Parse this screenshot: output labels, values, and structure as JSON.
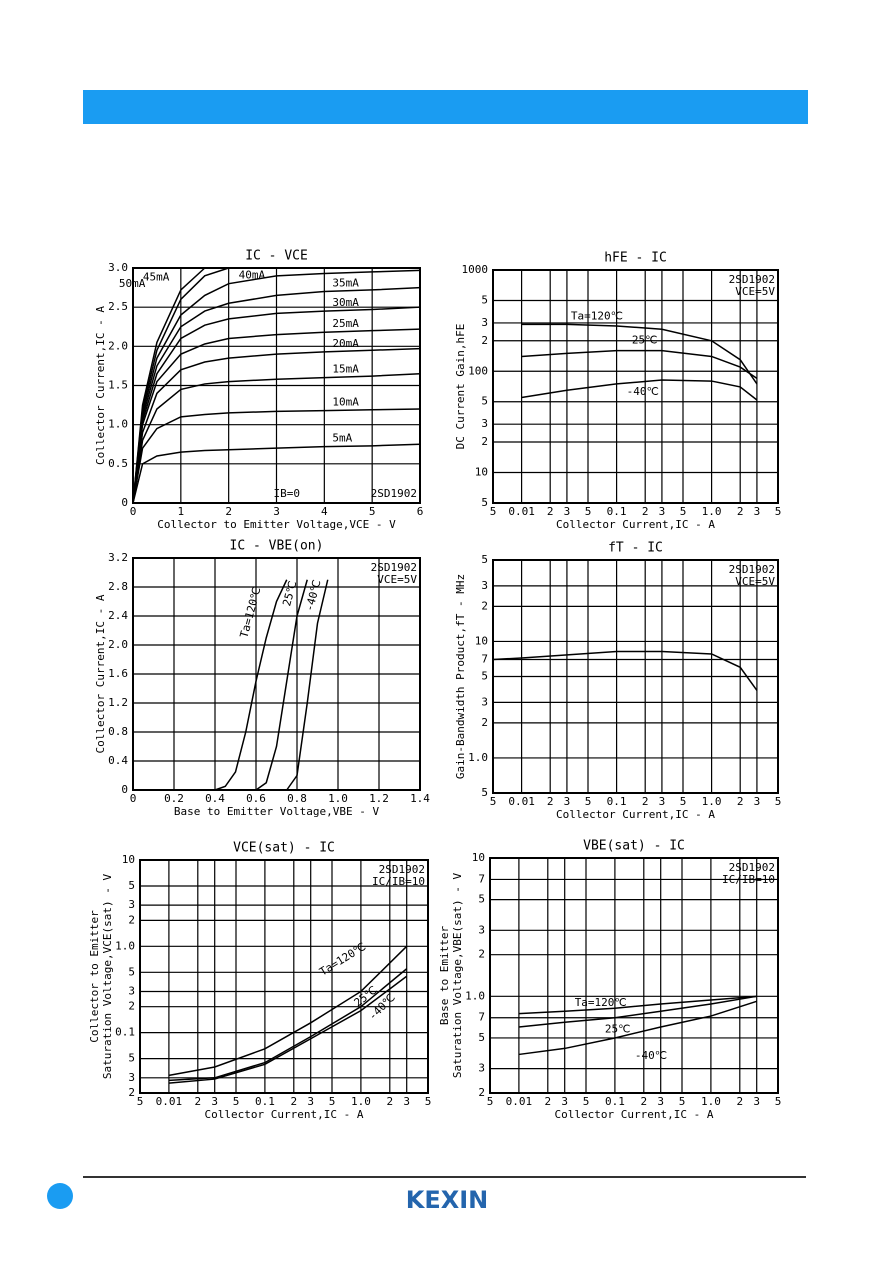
{
  "chart_data": [
    {
      "type": "line",
      "title": "IC - VCE",
      "xlabel": "Collector to Emitter Voltage,VCE - V",
      "ylabel": [
        "Collector Current,IC - A"
      ],
      "xlim": [
        0,
        6
      ],
      "ylim": [
        0,
        3
      ],
      "xticks": [
        0,
        1,
        2,
        3,
        4,
        5,
        6
      ],
      "yticks": [
        0,
        0.5,
        {
          "value": 1,
          "label": "1.0"
        },
        1.5,
        {
          "value": 2,
          "label": "2.0"
        },
        2.5,
        {
          "value": 3,
          "label": "3.0"
        }
      ],
      "xlog": false,
      "ylog": false,
      "grid": true,
      "annotations": [
        "IB=0",
        "2SD1902"
      ],
      "x": [
        0,
        0.2,
        0.5,
        1,
        1.5,
        2,
        3,
        4,
        5,
        6
      ],
      "series": [
        {
          "name": "5mA",
          "color": "#000000",
          "values": [
            0,
            0.5,
            0.6,
            0.65,
            0.67,
            0.68,
            0.7,
            0.72,
            0.73,
            0.75
          ]
        },
        {
          "name": "10mA",
          "color": "#000000",
          "values": [
            0,
            0.7,
            0.95,
            1.1,
            1.13,
            1.15,
            1.17,
            1.18,
            1.19,
            1.2
          ]
        },
        {
          "name": "15mA",
          "color": "#000000",
          "values": [
            0,
            0.8,
            1.2,
            1.45,
            1.52,
            1.55,
            1.58,
            1.6,
            1.62,
            1.65
          ]
        },
        {
          "name": "20mA",
          "color": "#000000",
          "values": [
            0,
            0.9,
            1.4,
            1.7,
            1.8,
            1.85,
            1.9,
            1.93,
            1.95,
            1.97
          ]
        },
        {
          "name": "25mA",
          "color": "#000000",
          "values": [
            0,
            1.0,
            1.55,
            1.9,
            2.03,
            2.1,
            2.15,
            2.18,
            2.2,
            2.22
          ]
        },
        {
          "name": "30mA",
          "color": "#000000",
          "values": [
            0,
            1.05,
            1.65,
            2.1,
            2.27,
            2.35,
            2.42,
            2.45,
            2.47,
            2.5
          ]
        },
        {
          "name": "35mA",
          "color": "#000000",
          "values": [
            0,
            1.1,
            1.75,
            2.25,
            2.45,
            2.55,
            2.65,
            2.7,
            2.72,
            2.75
          ]
        },
        {
          "name": "40mA",
          "color": "#000000",
          "values": [
            0,
            1.15,
            1.85,
            2.4,
            2.65,
            2.8,
            2.9,
            2.93,
            2.95,
            2.97
          ]
        },
        {
          "name": "45mA",
          "color": "#000000",
          "values": [
            0,
            1.2,
            1.95,
            2.6,
            2.9,
            3.0,
            null,
            null,
            null,
            null
          ]
        },
        {
          "name": "50mA",
          "color": "#000000",
          "values": [
            0,
            1.25,
            2.05,
            2.72,
            3.0,
            null,
            null,
            null,
            null,
            null
          ]
        }
      ]
    },
    {
      "type": "line",
      "title": "hFE - IC",
      "xlabel": "Collector Current,IC - A",
      "ylabel": [
        "DC Current Gain,hFE"
      ],
      "xlim": [
        0.005,
        5
      ],
      "ylim": [
        5,
        1000
      ],
      "xticks": [
        {
          "value": 0.005,
          "label": "5"
        },
        0.01,
        {
          "value": 0.02,
          "label": "2"
        },
        {
          "value": 0.03,
          "label": "3"
        },
        {
          "value": 0.05,
          "label": "5"
        },
        0.1,
        {
          "value": 0.2,
          "label": "2"
        },
        {
          "value": 0.3,
          "label": "3"
        },
        {
          "value": 0.5,
          "label": "5"
        },
        {
          "value": 1,
          "label": "1.0"
        },
        2,
        3,
        5
      ],
      "yticks": [
        5,
        10,
        {
          "value": 20,
          "label": "2"
        },
        {
          "value": 30,
          "label": "3"
        },
        {
          "value": 50,
          "label": "5"
        },
        100,
        {
          "value": 200,
          "label": "2"
        },
        {
          "value": 300,
          "label": "3"
        },
        {
          "value": 500,
          "label": "5"
        },
        1000
      ],
      "xlog": true,
      "ylog": true,
      "grid": true,
      "annotations": [
        "2SD1902",
        "VCE=5V"
      ],
      "x": [
        0.01,
        0.03,
        0.1,
        0.3,
        1,
        2,
        3
      ],
      "series": [
        {
          "name": "Ta=120℃",
          "color": "#000000",
          "values": [
            290,
            290,
            280,
            260,
            200,
            130,
            75
          ]
        },
        {
          "name": "25℃",
          "color": "#000000",
          "values": [
            140,
            150,
            160,
            160,
            140,
            110,
            85
          ]
        },
        {
          "name": "-40℃",
          "color": "#000000",
          "values": [
            55,
            65,
            75,
            82,
            80,
            70,
            52
          ]
        }
      ]
    },
    {
      "type": "line",
      "title": "IC - VBE(on)",
      "xlabel": "Base to Emitter Voltage,VBE - V",
      "ylabel": [
        "Collector Current,IC - A"
      ],
      "xlim": [
        0,
        1.4
      ],
      "ylim": [
        0,
        3.2
      ],
      "xticks": [
        0,
        0.2,
        0.4,
        0.6,
        0.8,
        {
          "value": 1,
          "label": "1.0"
        },
        1.2,
        1.4
      ],
      "yticks": [
        0,
        0.4,
        0.8,
        1.2,
        1.6,
        {
          "value": 2,
          "label": "2.0"
        },
        2.4,
        2.8,
        3.2
      ],
      "xlog": false,
      "ylog": false,
      "grid": true,
      "annotations": [
        "2SD1902",
        "VCE=5V"
      ],
      "series": [
        {
          "name": "Ta=120℃",
          "color": "#000000",
          "x": [
            0.4,
            0.45,
            0.5,
            0.55,
            0.6,
            0.65,
            0.7,
            0.75
          ],
          "values": [
            0,
            0.05,
            0.25,
            0.8,
            1.5,
            2.1,
            2.6,
            2.9
          ]
        },
        {
          "name": "25℃",
          "color": "#000000",
          "x": [
            0.6,
            0.65,
            0.7,
            0.75,
            0.8,
            0.85
          ],
          "values": [
            0,
            0.1,
            0.6,
            1.5,
            2.4,
            2.9
          ]
        },
        {
          "name": "-40℃",
          "color": "#000000",
          "x": [
            0.75,
            0.8,
            0.85,
            0.9,
            0.95
          ],
          "values": [
            0,
            0.2,
            1.2,
            2.3,
            2.9
          ]
        }
      ]
    },
    {
      "type": "line",
      "title": "fT - IC",
      "xlabel": "Collector Current,IC - A",
      "ylabel": [
        "Gain-Bandwidth Product,fT - MHz"
      ],
      "xlim": [
        0.005,
        5
      ],
      "ylim": [
        0.5,
        50
      ],
      "xticks": [
        {
          "value": 0.005,
          "label": "5"
        },
        0.01,
        {
          "value": 0.02,
          "label": "2"
        },
        {
          "value": 0.03,
          "label": "3"
        },
        {
          "value": 0.05,
          "label": "5"
        },
        0.1,
        {
          "value": 0.2,
          "label": "2"
        },
        {
          "value": 0.3,
          "label": "3"
        },
        {
          "value": 0.5,
          "label": "5"
        },
        {
          "value": 1,
          "label": "1.0"
        },
        2,
        3,
        5
      ],
      "yticks": [
        {
          "value": 0.5,
          "label": "5"
        },
        {
          "value": 1,
          "label": "1.0"
        },
        2,
        3,
        5,
        7,
        10,
        {
          "value": 20,
          "label": "2"
        },
        {
          "value": 30,
          "label": "3"
        },
        {
          "value": 50,
          "label": "5"
        }
      ],
      "xlog": true,
      "ylog": true,
      "grid": true,
      "annotations": [
        "2SD1902",
        "VCE=5V"
      ],
      "x": [
        0.005,
        0.01,
        0.1,
        0.3,
        1,
        2,
        3
      ],
      "series": [
        {
          "color": "#000000",
          "values": [
            7,
            7.2,
            8.2,
            8.2,
            7.8,
            6,
            3.8
          ]
        }
      ]
    },
    {
      "type": "line",
      "title": "VCE(sat) - IC",
      "xlabel": "Collector Current,IC - A",
      "ylabel": [
        "Collector to Emitter",
        "Saturation Voltage,VCE(sat) - V"
      ],
      "xlim": [
        0.005,
        5
      ],
      "ylim": [
        0.02,
        10
      ],
      "xticks": [
        {
          "value": 0.005,
          "label": "5"
        },
        0.01,
        {
          "value": 0.02,
          "label": "2"
        },
        {
          "value": 0.03,
          "label": "3"
        },
        {
          "value": 0.05,
          "label": "5"
        },
        0.1,
        {
          "value": 0.2,
          "label": "2"
        },
        {
          "value": 0.3,
          "label": "3"
        },
        {
          "value": 0.5,
          "label": "5"
        },
        {
          "value": 1,
          "label": "1.0"
        },
        2,
        3,
        5
      ],
      "yticks": [
        {
          "value": 0.02,
          "label": "2"
        },
        {
          "value": 0.03,
          "label": "3"
        },
        {
          "value": 0.05,
          "label": "5"
        },
        0.1,
        {
          "value": 0.2,
          "label": "2"
        },
        {
          "value": 0.3,
          "label": "3"
        },
        {
          "value": 0.5,
          "label": "5"
        },
        {
          "value": 1,
          "label": "1.0"
        },
        2,
        3,
        5,
        10
      ],
      "xlog": true,
      "ylog": true,
      "grid": true,
      "annotations": [
        "2SD1902",
        "IC/IB=10"
      ],
      "x": [
        0.01,
        0.03,
        0.1,
        0.3,
        1,
        3
      ],
      "series": [
        {
          "name": "Ta=120℃",
          "color": "#000000",
          "values": [
            0.032,
            0.04,
            0.065,
            0.13,
            0.3,
            1.0
          ]
        },
        {
          "name": "25℃",
          "color": "#000000",
          "values": [
            0.028,
            0.03,
            0.045,
            0.09,
            0.2,
            0.55
          ]
        },
        {
          "name": "-40℃",
          "color": "#000000",
          "values": [
            0.026,
            0.029,
            0.043,
            0.085,
            0.18,
            0.45
          ]
        }
      ]
    },
    {
      "type": "line",
      "title": "VBE(sat) - IC",
      "xlabel": "Collector Current,IC - A",
      "ylabel": [
        "Base to Emitter",
        "Saturation Voltage,VBE(sat) - V"
      ],
      "xlim": [
        0.005,
        5
      ],
      "ylim": [
        0.2,
        10
      ],
      "xticks": [
        {
          "value": 0.005,
          "label": "5"
        },
        0.01,
        {
          "value": 0.02,
          "label": "2"
        },
        {
          "value": 0.03,
          "label": "3"
        },
        {
          "value": 0.05,
          "label": "5"
        },
        0.1,
        {
          "value": 0.2,
          "label": "2"
        },
        {
          "value": 0.3,
          "label": "3"
        },
        {
          "value": 0.5,
          "label": "5"
        },
        {
          "value": 1,
          "label": "1.0"
        },
        2,
        3,
        5
      ],
      "yticks": [
        {
          "value": 0.2,
          "label": "2"
        },
        {
          "value": 0.3,
          "label": "3"
        },
        {
          "value": 0.5,
          "label": "5"
        },
        {
          "value": 0.7,
          "label": "7"
        },
        {
          "value": 1,
          "label": "1.0"
        },
        2,
        3,
        5,
        7,
        10
      ],
      "xlog": true,
      "ylog": true,
      "grid": true,
      "annotations": [
        "2SD1902",
        "IC/IB=10"
      ],
      "x": [
        0.01,
        0.03,
        0.1,
        0.3,
        1,
        3
      ],
      "series": [
        {
          "name": "Ta=120℃",
          "color": "#000000",
          "values": [
            0.75,
            0.78,
            0.82,
            0.88,
            0.94,
            1.0
          ]
        },
        {
          "name": "25℃",
          "color": "#000000",
          "values": [
            0.6,
            0.65,
            0.7,
            0.78,
            0.88,
            1.0
          ]
        },
        {
          "name": "-40℃",
          "color": "#000000",
          "values": [
            0.38,
            0.42,
            0.5,
            0.6,
            0.72,
            0.92
          ]
        }
      ]
    }
  ],
  "footer": {
    "logo": "KEXIN"
  }
}
